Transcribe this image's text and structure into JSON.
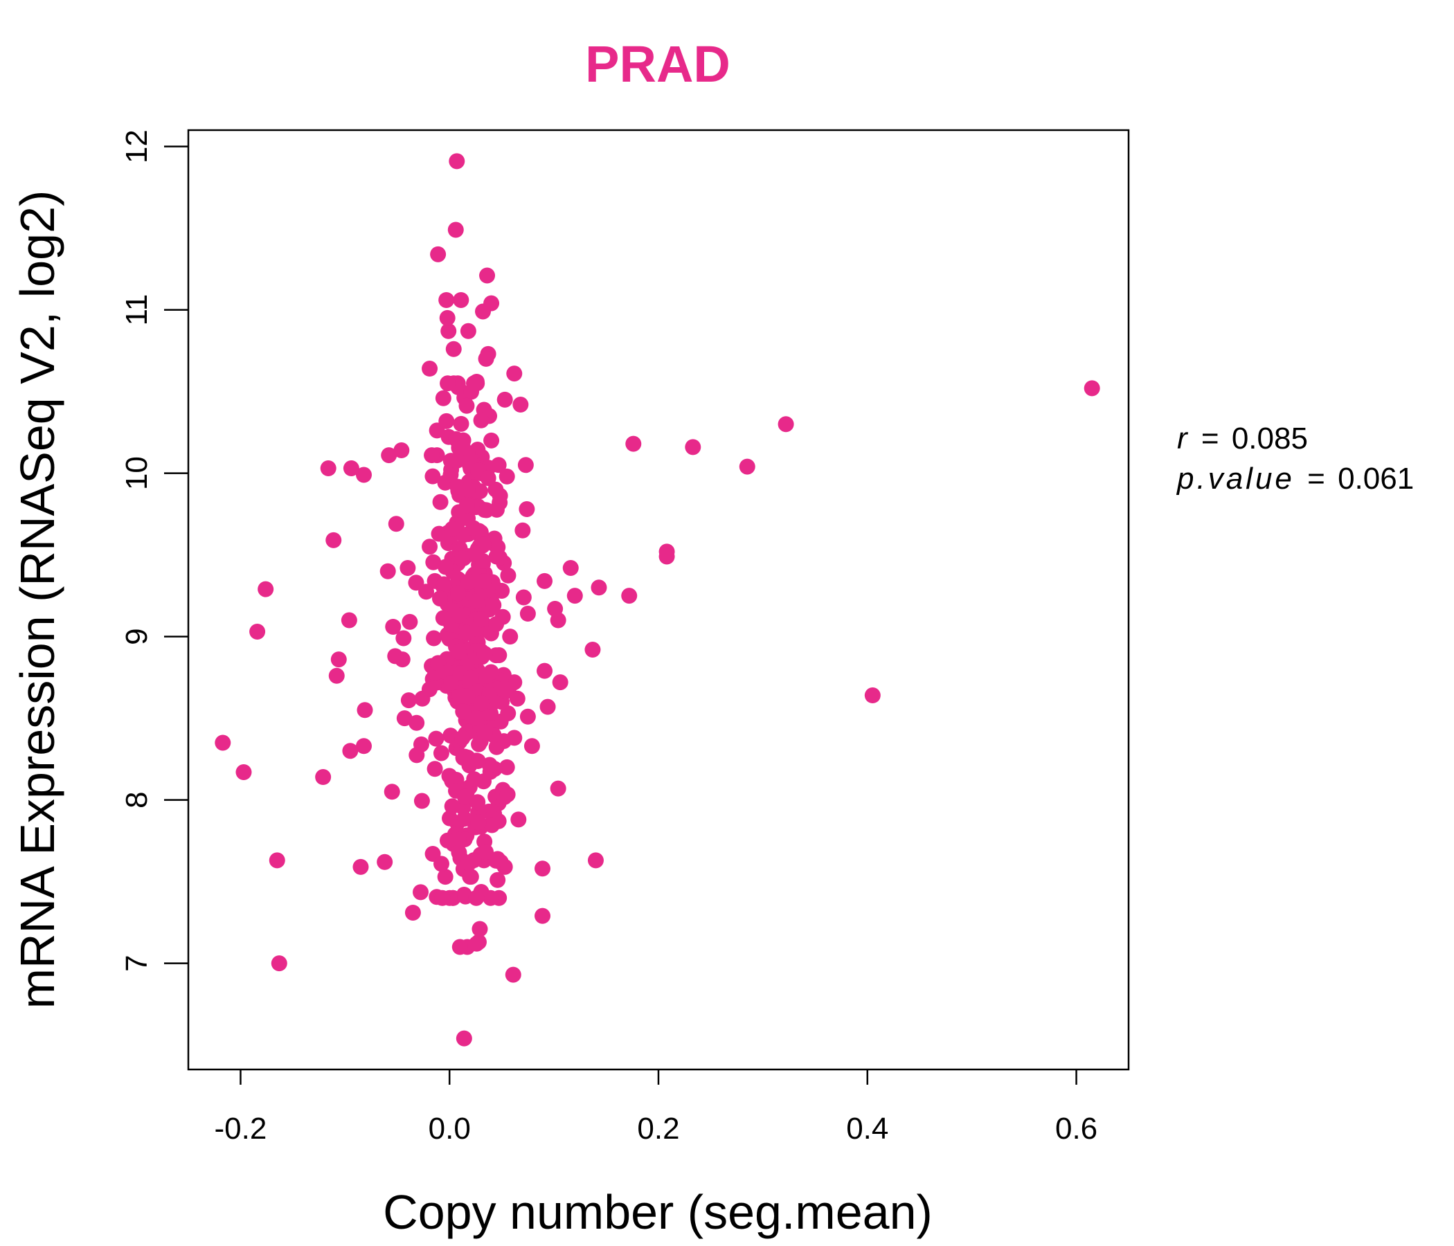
{
  "colors": {
    "point": "#E7298A",
    "title": "#E7298A",
    "axis": "#000000"
  },
  "chart_data": {
    "type": "scatter",
    "title": "PRAD",
    "xlabel": "Copy number (seg.mean)",
    "ylabel": "mRNA Expression (RNASeq V2, log2)",
    "xlim": [
      -0.25,
      0.65
    ],
    "ylim": [
      6.35,
      12.1
    ],
    "x_ticks": [
      -0.2,
      0.0,
      0.2,
      0.4,
      0.6
    ],
    "x_tick_labels": [
      "-0.2",
      "0.0",
      "0.2",
      "0.4",
      "0.6"
    ],
    "y_ticks": [
      7,
      8,
      9,
      10,
      11,
      12
    ],
    "y_tick_labels": [
      "7",
      "8",
      "9",
      "10",
      "11",
      "12"
    ],
    "grid": false,
    "annotations": {
      "r_label": "r",
      "r_value": "0.085",
      "p_label": "p.value",
      "p_value": "0.061"
    },
    "outlier_points": [
      [
        0.615,
        10.52
      ],
      [
        0.405,
        8.64
      ],
      [
        0.322,
        10.3
      ],
      [
        0.285,
        10.04
      ],
      [
        0.233,
        10.16
      ],
      [
        0.208,
        9.52
      ],
      [
        0.208,
        9.49
      ],
      [
        0.176,
        10.18
      ],
      [
        0.172,
        9.25
      ],
      [
        0.143,
        9.3
      ],
      [
        0.137,
        8.92
      ],
      [
        0.14,
        7.63
      ],
      [
        0.12,
        9.25
      ],
      [
        0.116,
        9.42
      ],
      [
        0.106,
        8.72
      ],
      [
        0.104,
        9.1
      ],
      [
        0.104,
        8.07
      ],
      [
        0.101,
        9.17
      ],
      [
        0.094,
        8.57
      ],
      [
        0.091,
        9.34
      ],
      [
        0.091,
        8.79
      ],
      [
        0.089,
        7.58
      ],
      [
        0.089,
        7.29
      ],
      [
        0.079,
        8.33
      ],
      [
        0.075,
        9.14
      ],
      [
        0.075,
        8.51
      ],
      [
        0.074,
        9.78
      ],
      [
        0.073,
        10.05
      ],
      [
        0.071,
        9.24
      ],
      [
        0.07,
        9.65
      ],
      [
        0.068,
        10.42
      ],
      [
        0.066,
        7.88
      ],
      [
        0.065,
        8.62
      ],
      [
        0.062,
        8.72
      ],
      [
        0.062,
        8.38
      ],
      [
        0.062,
        10.61
      ],
      [
        0.061,
        6.93
      ],
      [
        0.058,
        8.7
      ],
      [
        0.056,
        8.53
      ],
      [
        0.055,
        8.2
      ],
      [
        0.053,
        7.59
      ],
      [
        0.049,
        7.62
      ],
      [
        0.047,
        7.98
      ],
      [
        0.046,
        7.51
      ],
      [
        0.045,
        9.49
      ],
      [
        0.044,
        9.56
      ],
      [
        0.042,
        9.31
      ],
      [
        0.04,
        11.04
      ],
      [
        0.037,
        10.73
      ],
      [
        0.036,
        11.21
      ],
      [
        0.035,
        10.7
      ],
      [
        0.033,
        7.63
      ],
      [
        0.032,
        10.99
      ],
      [
        0.029,
        7.21
      ],
      [
        0.028,
        7.13
      ],
      [
        0.018,
        10.87
      ],
      [
        0.011,
        11.06
      ],
      [
        0.007,
        11.91
      ],
      [
        0.006,
        11.49
      ],
      [
        0.004,
        10.76
      ],
      [
        -0.001,
        10.87
      ],
      [
        -0.002,
        10.95
      ],
      [
        -0.003,
        11.06
      ],
      [
        -0.011,
        11.34
      ],
      [
        -0.019,
        10.64
      ],
      [
        -0.012,
        10.11
      ],
      [
        -0.017,
        10.11
      ],
      [
        -0.019,
        9.55
      ],
      [
        -0.014,
        9.34
      ],
      [
        -0.015,
        8.99
      ],
      [
        -0.016,
        8.74
      ],
      [
        -0.017,
        8.82
      ],
      [
        -0.014,
        8.19
      ],
      [
        -0.016,
        7.67
      ],
      [
        -0.026,
        8.62
      ],
      [
        -0.027,
        8.34
      ],
      [
        -0.032,
        9.33
      ],
      [
        -0.035,
        7.31
      ],
      [
        -0.038,
        9.09
      ],
      [
        -0.039,
        8.61
      ],
      [
        -0.04,
        9.42
      ],
      [
        -0.043,
        8.5
      ],
      [
        -0.044,
        8.99
      ],
      [
        -0.045,
        8.86
      ],
      [
        -0.046,
        10.14
      ],
      [
        -0.051,
        9.69
      ],
      [
        -0.052,
        8.88
      ],
      [
        -0.054,
        9.06
      ],
      [
        -0.055,
        8.05
      ],
      [
        -0.058,
        10.11
      ],
      [
        -0.059,
        9.4
      ],
      [
        -0.062,
        7.62
      ],
      [
        -0.081,
        8.55
      ],
      [
        -0.082,
        8.33
      ],
      [
        -0.082,
        9.99
      ],
      [
        -0.085,
        7.59
      ],
      [
        -0.094,
        10.03
      ],
      [
        -0.095,
        8.3
      ],
      [
        -0.096,
        9.1
      ],
      [
        -0.106,
        8.86
      ],
      [
        -0.108,
        8.76
      ],
      [
        -0.111,
        9.59
      ],
      [
        -0.116,
        10.03
      ],
      [
        -0.121,
        8.14
      ],
      [
        -0.165,
        7.63
      ],
      [
        -0.163,
        7.0
      ],
      [
        -0.176,
        9.29
      ],
      [
        -0.184,
        9.03
      ],
      [
        -0.197,
        8.17
      ],
      [
        -0.217,
        8.35
      ],
      [
        0.014,
        6.54
      ],
      [
        0.017,
        7.1
      ],
      [
        0.01,
        7.1
      ],
      [
        0.026,
        7.12
      ],
      [
        0.014,
        7.42
      ],
      [
        0.05,
        8.6
      ],
      [
        0.049,
        8.48
      ],
      [
        0.052,
        8.36
      ],
      [
        0.044,
        8.62
      ],
      [
        0.052,
        9.45
      ],
      [
        0.048,
        9.82
      ],
      [
        0.047,
        10.05
      ],
      [
        0.053,
        10.45
      ],
      [
        0.026,
        10.56
      ],
      [
        0.04,
        10.2
      ],
      [
        0.038,
        10.35
      ],
      [
        0.055,
        9.98
      ],
      [
        0.051,
        9.12
      ],
      [
        0.044,
        8.02
      ],
      [
        0.041,
        7.86
      ],
      [
        0.047,
        7.87
      ],
      [
        0.04,
        8.72
      ],
      [
        0.043,
        9.6
      ],
      [
        0.058,
        9.0
      ],
      [
        0.05,
        9.28
      ]
    ],
    "core_cluster": {
      "count": 360,
      "x_center": 0.018,
      "x_spread": 0.016,
      "y_center": 8.95,
      "y_spread": 0.8,
      "y_range": [
        7.4,
        10.55
      ]
    }
  }
}
